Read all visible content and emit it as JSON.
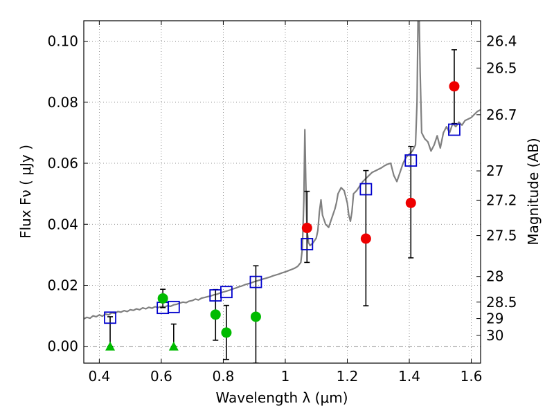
{
  "chart_data": {
    "type": "scatter",
    "title": "",
    "xlabel": "Wavelength  λ (μm)",
    "ylabel": "Flux  Fν  ( μJy )",
    "y2label": "Magnitude (AB)",
    "xlim": [
      0.35,
      1.63
    ],
    "ylim": [
      -0.0055,
      0.1067
    ],
    "xticks": [
      0.4,
      0.6,
      0.8,
      1.0,
      1.2,
      1.4,
      1.6
    ],
    "xtick_labels": [
      "0.4",
      "0.6",
      "0.8",
      "1",
      "1.2",
      "1.4",
      "1.6"
    ],
    "yticks": [
      0.0,
      0.02,
      0.04,
      0.06,
      0.08,
      0.1
    ],
    "ytick_labels": [
      "0.00",
      "0.02",
      "0.04",
      "0.06",
      "0.08",
      "0.10"
    ],
    "magnitude_ticks": [
      {
        "label": "26.4",
        "flux": 0.1
      },
      {
        "label": "26.5",
        "flux": 0.0912
      },
      {
        "label": "26.7",
        "flux": 0.0759
      },
      {
        "label": "27",
        "flux": 0.0575
      },
      {
        "label": "27.2",
        "flux": 0.0479
      },
      {
        "label": "27.5",
        "flux": 0.0363
      },
      {
        "label": "28",
        "flux": 0.0229
      },
      {
        "label": "28.5",
        "flux": 0.0145
      },
      {
        "label": "29",
        "flux": 0.0091
      },
      {
        "label": "30",
        "flux": 0.0036
      }
    ],
    "grid": true,
    "colors": {
      "model": "#808080",
      "model_points": "#0000cc",
      "green": "#00bb00",
      "red": "#ee0000",
      "errorbar": "#000000"
    },
    "series": [
      {
        "kind": "line",
        "points": [
          [
            0.35,
            0.009
          ],
          [
            0.36,
            0.0095
          ],
          [
            0.37,
            0.0092
          ],
          [
            0.38,
            0.01
          ],
          [
            0.39,
            0.0097
          ],
          [
            0.4,
            0.0103
          ],
          [
            0.41,
            0.0099
          ],
          [
            0.42,
            0.0106
          ],
          [
            0.43,
            0.0103
          ],
          [
            0.44,
            0.011
          ],
          [
            0.45,
            0.0108
          ],
          [
            0.46,
            0.0114
          ],
          [
            0.47,
            0.0112
          ],
          [
            0.48,
            0.0117
          ],
          [
            0.49,
            0.0114
          ],
          [
            0.5,
            0.012
          ],
          [
            0.51,
            0.0118
          ],
          [
            0.52,
            0.0123
          ],
          [
            0.53,
            0.012
          ],
          [
            0.54,
            0.0126
          ],
          [
            0.55,
            0.0123
          ],
          [
            0.56,
            0.0128
          ],
          [
            0.57,
            0.0125
          ],
          [
            0.58,
            0.013
          ],
          [
            0.59,
            0.0127
          ],
          [
            0.6,
            0.0131
          ],
          [
            0.61,
            0.0129
          ],
          [
            0.62,
            0.0133
          ],
          [
            0.63,
            0.0131
          ],
          [
            0.64,
            0.0136
          ],
          [
            0.65,
            0.0138
          ],
          [
            0.66,
            0.0142
          ],
          [
            0.67,
            0.0145
          ],
          [
            0.68,
            0.0143
          ],
          [
            0.69,
            0.0148
          ],
          [
            0.7,
            0.015
          ],
          [
            0.71,
            0.0155
          ],
          [
            0.72,
            0.0152
          ],
          [
            0.73,
            0.0158
          ],
          [
            0.74,
            0.016
          ],
          [
            0.75,
            0.0163
          ],
          [
            0.76,
            0.0165
          ],
          [
            0.77,
            0.0169
          ],
          [
            0.78,
            0.0171
          ],
          [
            0.79,
            0.0175
          ],
          [
            0.8,
            0.0178
          ],
          [
            0.81,
            0.0181
          ],
          [
            0.82,
            0.0184
          ],
          [
            0.83,
            0.0188
          ],
          [
            0.84,
            0.0191
          ],
          [
            0.85,
            0.0195
          ],
          [
            0.86,
            0.0198
          ],
          [
            0.87,
            0.0202
          ],
          [
            0.88,
            0.0205
          ],
          [
            0.89,
            0.0208
          ],
          [
            0.9,
            0.0212
          ],
          [
            0.91,
            0.0215
          ],
          [
            0.92,
            0.0218
          ],
          [
            0.93,
            0.0221
          ],
          [
            0.94,
            0.0224
          ],
          [
            0.95,
            0.0227
          ],
          [
            0.96,
            0.0231
          ],
          [
            0.97,
            0.0234
          ],
          [
            0.98,
            0.0237
          ],
          [
            0.99,
            0.0241
          ],
          [
            1.0,
            0.0244
          ],
          [
            1.01,
            0.0248
          ],
          [
            1.02,
            0.0252
          ],
          [
            1.03,
            0.0256
          ],
          [
            1.04,
            0.0262
          ],
          [
            1.05,
            0.0275
          ],
          [
            1.055,
            0.032
          ],
          [
            1.06,
            0.048
          ],
          [
            1.063,
            0.071
          ],
          [
            1.066,
            0.055
          ],
          [
            1.07,
            0.038
          ],
          [
            1.075,
            0.034
          ],
          [
            1.08,
            0.033
          ],
          [
            1.09,
            0.034
          ],
          [
            1.1,
            0.0355
          ],
          [
            1.105,
            0.038
          ],
          [
            1.11,
            0.044
          ],
          [
            1.115,
            0.048
          ],
          [
            1.12,
            0.043
          ],
          [
            1.13,
            0.04
          ],
          [
            1.14,
            0.039
          ],
          [
            1.15,
            0.042
          ],
          [
            1.16,
            0.045
          ],
          [
            1.165,
            0.047
          ],
          [
            1.17,
            0.05
          ],
          [
            1.18,
            0.052
          ],
          [
            1.19,
            0.051
          ],
          [
            1.2,
            0.047
          ],
          [
            1.205,
            0.043
          ],
          [
            1.21,
            0.041
          ],
          [
            1.215,
            0.044
          ],
          [
            1.22,
            0.05
          ],
          [
            1.23,
            0.051
          ],
          [
            1.24,
            0.0525
          ],
          [
            1.25,
            0.054
          ],
          [
            1.26,
            0.055
          ],
          [
            1.27,
            0.056
          ],
          [
            1.28,
            0.057
          ],
          [
            1.29,
            0.0575
          ],
          [
            1.3,
            0.058
          ],
          [
            1.31,
            0.0585
          ],
          [
            1.32,
            0.0592
          ],
          [
            1.33,
            0.0597
          ],
          [
            1.34,
            0.06
          ],
          [
            1.35,
            0.056
          ],
          [
            1.36,
            0.054
          ],
          [
            1.37,
            0.057
          ],
          [
            1.38,
            0.06
          ],
          [
            1.39,
            0.062
          ],
          [
            1.4,
            0.063
          ],
          [
            1.41,
            0.064
          ],
          [
            1.42,
            0.066
          ],
          [
            1.425,
            0.08
          ],
          [
            1.428,
            0.1067
          ],
          [
            1.432,
            0.1067
          ],
          [
            1.435,
            0.09
          ],
          [
            1.44,
            0.07
          ],
          [
            1.45,
            0.068
          ],
          [
            1.46,
            0.067
          ],
          [
            1.47,
            0.064
          ],
          [
            1.48,
            0.066
          ],
          [
            1.49,
            0.069
          ],
          [
            1.5,
            0.065
          ],
          [
            1.51,
            0.07
          ],
          [
            1.52,
            0.072
          ],
          [
            1.53,
            0.07
          ],
          [
            1.54,
            0.073
          ],
          [
            1.55,
            0.072
          ],
          [
            1.56,
            0.0735
          ],
          [
            1.57,
            0.0725
          ],
          [
            1.58,
            0.074
          ],
          [
            1.59,
            0.0745
          ],
          [
            1.6,
            0.075
          ],
          [
            1.61,
            0.076
          ],
          [
            1.62,
            0.077
          ],
          [
            1.63,
            0.0775
          ]
        ]
      },
      {
        "kind": "open_squares",
        "points": [
          [
            0.435,
            0.0094
          ],
          [
            0.605,
            0.0126
          ],
          [
            0.64,
            0.0129
          ],
          [
            0.775,
            0.0167
          ],
          [
            0.81,
            0.0178
          ],
          [
            0.905,
            0.0211
          ],
          [
            1.07,
            0.0335
          ],
          [
            1.26,
            0.0515
          ],
          [
            1.405,
            0.0609
          ],
          [
            1.545,
            0.071
          ]
        ]
      },
      {
        "kind": "green_circles",
        "points": [
          [
            0.605,
            0.0157
          ],
          [
            0.775,
            0.0104
          ],
          [
            0.81,
            0.0045
          ],
          [
            0.905,
            0.0097
          ]
        ]
      },
      {
        "kind": "green_triangles",
        "points": [
          [
            0.435,
            0.0
          ],
          [
            0.64,
            0.0
          ]
        ]
      },
      {
        "kind": "red_circles",
        "points": [
          [
            1.07,
            0.0388
          ],
          [
            1.26,
            0.0353
          ],
          [
            1.405,
            0.047
          ],
          [
            1.545,
            0.0852
          ]
        ]
      },
      {
        "kind": "error_bars",
        "bars": [
          {
            "x": 0.435,
            "low": 0.0,
            "high": 0.0097
          },
          {
            "x": 0.605,
            "low": 0.0127,
            "high": 0.0187
          },
          {
            "x": 0.64,
            "low": 0.0,
            "high": 0.0073
          },
          {
            "x": 0.775,
            "low": 0.002,
            "high": 0.0186
          },
          {
            "x": 0.81,
            "low": -0.0043,
            "high": 0.0134
          },
          {
            "x": 0.905,
            "low": -0.0055,
            "high": 0.0264
          },
          {
            "x": 1.07,
            "low": 0.0275,
            "high": 0.0508
          },
          {
            "x": 1.26,
            "low": 0.0133,
            "high": 0.0576
          },
          {
            "x": 1.405,
            "low": 0.029,
            "high": 0.0655
          },
          {
            "x": 1.545,
            "low": 0.073,
            "high": 0.0972
          }
        ]
      }
    ]
  }
}
